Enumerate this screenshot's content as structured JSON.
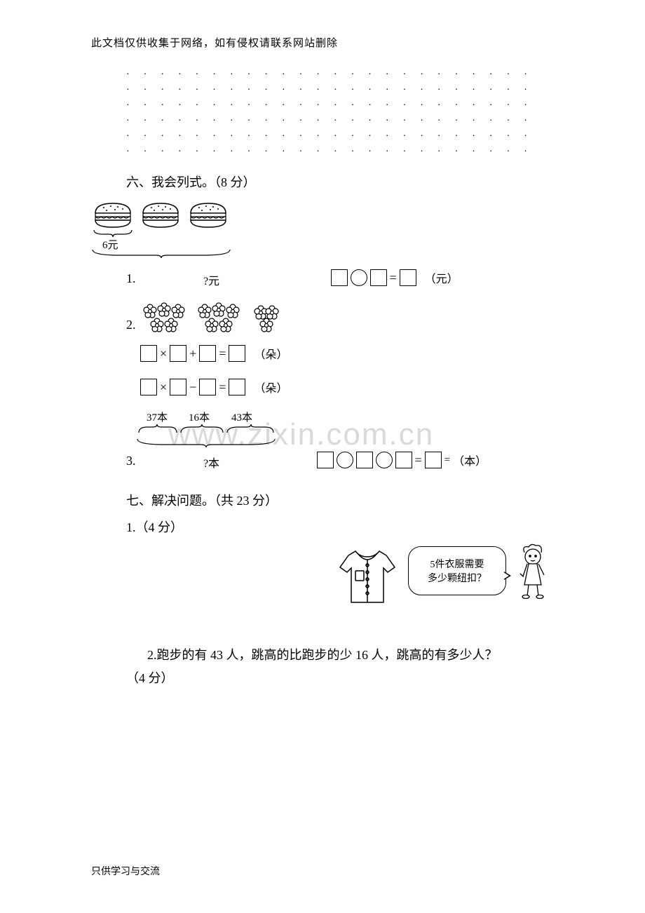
{
  "header": "此文档仅供收集于网络，如有侵权请联系网站删除",
  "dot_grid": {
    "rows": 6,
    "cols": 24,
    "dot_char": "·"
  },
  "section6": {
    "title": "六、我会列式。（8 分）",
    "q1": {
      "num": "1.",
      "price_each": "6元",
      "total_label": "?元",
      "unit": "（元）"
    },
    "q2": {
      "num": "2.",
      "eq_a_unit": "（朵）",
      "eq_b_unit": "（朵）"
    },
    "q3": {
      "num": "3.",
      "seg1": "37本",
      "seg2": "16本",
      "seg3": "43本",
      "total_label": "?本",
      "unit_after": "（本）"
    }
  },
  "section7": {
    "title": "七、解决问题。（共 23 分）",
    "q1": {
      "num": "1.（4 分）",
      "bubble_line1": "5件衣服需要",
      "bubble_line2": "多少颗纽扣？"
    },
    "q2": {
      "text": "2.跑步的有 43 人，跳高的比跑步的少 16 人，跳高的有多少人？",
      "pts": "（4 分）"
    }
  },
  "watermark": "www.zixin.com.cn",
  "footer": "只供学习与交流",
  "colors": {
    "text": "#000000",
    "watermark": "#d9d9d9",
    "background": "#ffffff"
  }
}
